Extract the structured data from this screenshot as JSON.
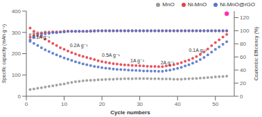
{
  "chart_data": {
    "type": "scatter",
    "xlabel": "Cycle numbers",
    "ylabel": "Specific capacity (mAh g⁻¹)",
    "y2label": "Coulombic Efficiency (%)",
    "xlim": [
      0,
      55
    ],
    "xticks": [
      0,
      10,
      20,
      30,
      40,
      50
    ],
    "ylim": [
      0,
      400
    ],
    "yticks": [
      0,
      100,
      200,
      300,
      400
    ],
    "y2lim": [
      0,
      130
    ],
    "y2ticks": [
      0,
      20,
      40,
      60,
      80,
      100,
      120
    ],
    "grid": false,
    "legend": "upper right",
    "series": [
      {
        "name": "MnO",
        "color": "#999999",
        "x": [
          1,
          2,
          3,
          4,
          5,
          6,
          7,
          8,
          9,
          10,
          11,
          12,
          13,
          14,
          15,
          16,
          17,
          18,
          19,
          20,
          21,
          22,
          23,
          24,
          25,
          26,
          27,
          28,
          29,
          30,
          31,
          32,
          33,
          34,
          35,
          36,
          37,
          38,
          39,
          40,
          41,
          42,
          43,
          44,
          45,
          46,
          47,
          48,
          49,
          50,
          51,
          52,
          53
        ],
        "values": [
          32,
          34,
          37,
          40,
          43,
          46,
          49,
          52,
          55,
          58,
          62,
          65,
          68,
          70,
          72,
          74,
          75,
          76,
          77,
          78,
          79,
          80,
          80,
          81,
          81,
          82,
          82,
          82,
          83,
          83,
          83,
          83,
          82,
          82,
          82,
          81,
          81,
          81,
          80,
          80,
          80,
          81,
          82,
          83,
          84,
          85,
          86,
          88,
          89,
          91,
          92,
          93,
          94
        ]
      },
      {
        "name": "Ni-MnO",
        "color": "#e8404a",
        "x": [
          1,
          2,
          3,
          4,
          5,
          6,
          7,
          8,
          9,
          10,
          11,
          12,
          13,
          14,
          15,
          16,
          17,
          18,
          19,
          20,
          21,
          22,
          23,
          24,
          25,
          26,
          27,
          28,
          29,
          30,
          31,
          32,
          33,
          34,
          35,
          36,
          37,
          38,
          39,
          40,
          41,
          42,
          43,
          44,
          45,
          46,
          47,
          48,
          49,
          50,
          51,
          52,
          53
        ],
        "values": [
          320,
          305,
          292,
          280,
          268,
          258,
          248,
          238,
          228,
          220,
          212,
          205,
          198,
          192,
          187,
          182,
          177,
          172,
          167,
          163,
          159,
          156,
          153,
          151,
          149,
          147,
          146,
          145,
          144,
          143,
          142,
          141,
          140,
          140,
          139,
          139,
          142,
          145,
          148,
          153,
          158,
          164,
          170,
          178,
          186,
          196,
          208,
          222,
          237,
          252,
          265,
          278,
          290
        ]
      },
      {
        "name": "Ni-MnO@rGO",
        "color": "#5577cc",
        "x": [
          1,
          2,
          3,
          4,
          5,
          6,
          7,
          8,
          9,
          10,
          11,
          12,
          13,
          14,
          15,
          16,
          17,
          18,
          19,
          20,
          21,
          22,
          23,
          24,
          25,
          26,
          27,
          28,
          29,
          30,
          31,
          32,
          33,
          34,
          35,
          36,
          37,
          38,
          39,
          40,
          41,
          42,
          43,
          44,
          45,
          46,
          47,
          48,
          49,
          50,
          51,
          52,
          53
        ],
        "values": [
          258,
          248,
          238,
          228,
          218,
          210,
          202,
          194,
          187,
          180,
          174,
          168,
          162,
          157,
          152,
          148,
          144,
          140,
          137,
          134,
          132,
          130,
          128,
          126,
          125,
          124,
          123,
          122,
          121,
          120,
          119,
          119,
          118,
          118,
          117,
          117,
          120,
          123,
          127,
          131,
          136,
          142,
          148,
          155,
          163,
          172,
          182,
          194,
          207,
          220,
          232,
          244,
          256
        ]
      },
      {
        "name": "MnO",
        "color": "#999999",
        "axis": "y2",
        "x": [
          1,
          2,
          3,
          4,
          5,
          6,
          7,
          8,
          9,
          10,
          11,
          12,
          13,
          14,
          15,
          16,
          17,
          18,
          19,
          20,
          21,
          22,
          23,
          24,
          25,
          26,
          27,
          28,
          29,
          30,
          31,
          32,
          33,
          34,
          35,
          36,
          37,
          38,
          39,
          40,
          41,
          42,
          43,
          44,
          45,
          46,
          47,
          48,
          49,
          50,
          51,
          52,
          53
        ],
        "values": [
          94,
          96,
          97,
          97,
          98,
          98,
          98,
          98,
          98,
          99,
          99,
          99,
          99,
          99,
          99,
          99,
          99,
          99,
          100,
          100,
          100,
          100,
          100,
          100,
          100,
          100,
          100,
          100,
          100,
          100,
          100,
          100,
          100,
          100,
          100,
          100,
          100,
          100,
          100,
          100,
          100,
          100,
          100,
          100,
          100,
          100,
          100,
          100,
          100,
          100,
          100,
          100,
          100
        ]
      },
      {
        "name": "Ni-MnO",
        "color": "#e8404a",
        "axis": "y2",
        "x": [
          1,
          2,
          3,
          4,
          5,
          6,
          7,
          8,
          9,
          10,
          11,
          12,
          13,
          14,
          15,
          16,
          17,
          18,
          19,
          20,
          21,
          22,
          23,
          24,
          25,
          26,
          27,
          28,
          29,
          30,
          31,
          32,
          33,
          34,
          35,
          36,
          37,
          38,
          39,
          40,
          41,
          42,
          43,
          44,
          45,
          46,
          47,
          48,
          49,
          50,
          51,
          52,
          53
        ],
        "values": [
          90,
          93,
          95,
          96,
          97,
          97,
          98,
          98,
          98,
          99,
          99,
          99,
          99,
          99,
          99,
          99,
          100,
          100,
          100,
          100,
          100,
          100,
          100,
          100,
          100,
          100,
          100,
          100,
          100,
          100,
          100,
          100,
          100,
          100,
          100,
          100,
          100,
          100,
          100,
          100,
          100,
          100,
          100,
          100,
          100,
          100,
          100,
          100,
          100,
          100,
          100,
          100,
          100
        ]
      },
      {
        "name": "Ni-MnO@rGO",
        "color": "#5577cc",
        "axis": "y2",
        "x": [
          1,
          2,
          3,
          4,
          5,
          6,
          7,
          8,
          9,
          10,
          11,
          12,
          13,
          14,
          15,
          16,
          17,
          18,
          19,
          20,
          21,
          22,
          23,
          24,
          25,
          26,
          27,
          28,
          29,
          30,
          31,
          32,
          33,
          34,
          35,
          36,
          37,
          38,
          39,
          40,
          41,
          42,
          43,
          44,
          45,
          46,
          47,
          48,
          49,
          50,
          51,
          52,
          53
        ],
        "values": [
          86,
          90,
          92,
          94,
          95,
          96,
          97,
          97,
          98,
          98,
          99,
          99,
          99,
          99,
          99,
          99,
          99,
          100,
          100,
          100,
          100,
          100,
          100,
          100,
          100,
          100,
          100,
          100,
          100,
          100,
          100,
          100,
          100,
          100,
          100,
          100,
          100,
          100,
          100,
          100,
          100,
          100,
          100,
          100,
          100,
          100,
          100,
          100,
          100,
          100,
          100,
          100,
          100
        ]
      },
      {
        "color": "#ff1aaa",
        "axis": "y2",
        "x": [
          53
        ],
        "values": [
          126
        ]
      }
    ],
    "annotations": [
      {
        "text": "0.1A g⁻¹",
        "x": 1.5,
        "y": 278
      },
      {
        "text": "0.2A g⁻¹",
        "x": 11.5,
        "y": 238
      },
      {
        "text": "0.5A g⁻¹",
        "x": 20,
        "y": 195
      },
      {
        "text": "1A g⁻¹",
        "x": 27.5,
        "y": 168
      },
      {
        "text": "2A g⁻¹",
        "x": 35.5,
        "y": 158
      },
      {
        "text": "0.1A g⁻¹",
        "x": 43,
        "y": 215
      }
    ]
  }
}
